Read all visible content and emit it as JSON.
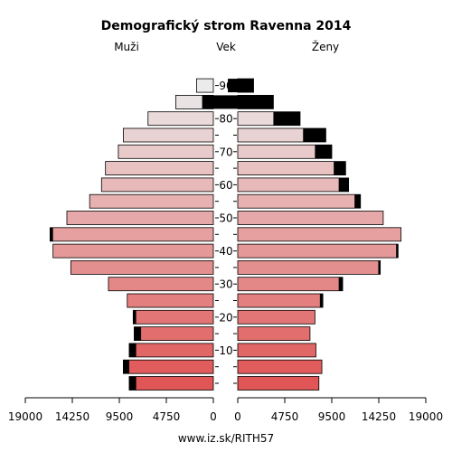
{
  "chart_data": {
    "type": "bar",
    "title": "Demografický strom Ravenna 2014",
    "left_label": "Muži",
    "center_label": "Vek",
    "right_label": "Ženy",
    "footer": "www.iz.sk/RITH57",
    "age_ticks": [
      "10",
      "20",
      "30",
      "40",
      "50",
      "60",
      "70",
      "80",
      "90"
    ],
    "x_ticks_left": [
      "19000",
      "14250",
      "9500",
      "4750",
      "0"
    ],
    "x_ticks_right": [
      "0",
      "4750",
      "9500",
      "14250",
      "19000"
    ],
    "xlim": [
      0,
      19000
    ],
    "age_groups": [
      "0-4",
      "5-9",
      "10-14",
      "15-19",
      "20-24",
      "25-29",
      "30-34",
      "35-39",
      "40-44",
      "45-49",
      "50-54",
      "55-59",
      "60-64",
      "65-69",
      "70-74",
      "75-79",
      "80-84",
      "85-89",
      "90+"
    ],
    "series": [
      {
        "name": "Muži",
        "values": [
          8500,
          9100,
          8500,
          8000,
          8100,
          8700,
          10600,
          14400,
          16200,
          16500,
          14800,
          12500,
          11300,
          10900,
          9600,
          9100,
          6600,
          3800,
          1700
        ],
        "foreign": [
          700,
          600,
          700,
          700,
          300,
          0,
          0,
          0,
          0,
          300,
          0,
          0,
          0,
          0,
          0,
          0,
          0,
          0,
          0
        ]
      },
      {
        "name": "Ženy",
        "values": [
          8200,
          8500,
          7900,
          7300,
          7800,
          8600,
          10600,
          14400,
          16200,
          16500,
          14700,
          12400,
          11200,
          10900,
          9500,
          8900,
          6300,
          3600,
          1600
        ],
        "foreign": [
          0,
          0,
          0,
          0,
          0,
          300,
          400,
          200,
          200,
          0,
          0,
          600,
          1000,
          1200,
          1700,
          2300,
          2700,
          7200,
          2600
        ]
      }
    ]
  },
  "colors": {
    "foreign": "#000000",
    "bar_base_young": "#e05555",
    "bar_base_old": "#ebebeb",
    "stroke": "#000000"
  }
}
